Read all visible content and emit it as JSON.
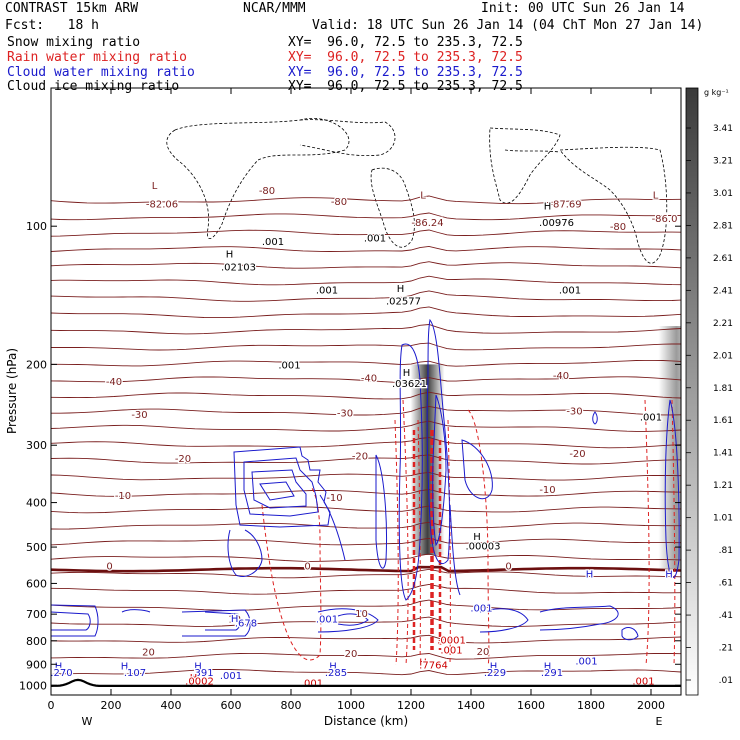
{
  "header": {
    "title": "CONTRAST 15km ARW",
    "forecast": "Fcst:   18 h",
    "center": "NCAR/MMM",
    "init": "Init: 00 UTC Sun 26 Jan 14",
    "valid": "Valid: 18 UTC Sun 26 Jan 14 (04 ChT Mon 27 Jan 14)"
  },
  "fields": [
    {
      "name": "Snow mixing ratio",
      "xy": "XY=  96.0, 72.5 to 235.3, 72.5",
      "color": "#000000"
    },
    {
      "name": "Rain water mixing ratio",
      "xy": "XY=  96.0, 72.5 to 235.3, 72.5",
      "color": "#cc0000"
    },
    {
      "name": "Cloud water mixing ratio",
      "xy": "XY=  96.0, 72.5 to 235.3, 72.5",
      "color": "#0000cc"
    },
    {
      "name": "Cloud ice mixing ratio",
      "xy": "XY=  96.0, 72.5 to 235.3, 72.5",
      "color": "#000000"
    }
  ],
  "colors": {
    "temperature": "#7a1f1f",
    "freezing": "#6b0f0f",
    "rain": "#dd2222",
    "cloud_water": "#1a1acc",
    "cloud_ice": "#000000",
    "snow_shade": "#3a3a3a"
  },
  "chart_data": {
    "type": "cross-section",
    "xlabel": "Distance (km)",
    "ylabel": "Pressure (hPa)",
    "xlim": [
      0,
      2100
    ],
    "ylim": [
      50,
      1050
    ],
    "y_scale": "log",
    "xticks": [
      0,
      200,
      400,
      600,
      800,
      1000,
      1200,
      1400,
      1600,
      1800,
      2000
    ],
    "yticks": [
      100,
      200,
      300,
      400,
      500,
      600,
      700,
      800,
      900,
      1000
    ],
    "x_endpoints": {
      "left": "W",
      "right": "E"
    },
    "colorbar": {
      "unit": "g kg⁻¹",
      "ticks": [
        ".01",
        ".21",
        ".41",
        ".61",
        ".81",
        "1.01",
        "1.21",
        "1.41",
        "1.61",
        "1.81",
        "2.01",
        "2.21",
        "2.41",
        "2.61",
        "2.81",
        "3.01",
        "3.21",
        "3.41"
      ]
    },
    "temperature_contours": [
      {
        "label": "-80",
        "p": 95
      },
      {
        "label": "-40",
        "p": 222
      },
      {
        "label": "-30",
        "p": 262
      },
      {
        "label": "-20",
        "p": 320
      },
      {
        "label": "-10",
        "p": 395
      },
      {
        "label": "0",
        "p": 560
      },
      {
        "label": "10",
        "p": 700
      },
      {
        "label": "20",
        "p": 865
      }
    ],
    "surface_pressure": 1003,
    "snow_columns": [
      {
        "x": 1255,
        "p_top": 200,
        "p_bottom": 520,
        "max": 3.2
      },
      {
        "x": 2075,
        "p_top": 165,
        "p_bottom": 560,
        "max": 2.6
      }
    ],
    "annotations": [
      {
        "text": "L",
        "x": 345,
        "p": 83,
        "color": "#7a1f1f"
      },
      {
        "text": "-82.06",
        "x": 370,
        "p": 91,
        "color": "#7a1f1f"
      },
      {
        "text": "L",
        "x": 1240,
        "p": 87,
        "color": "#7a1f1f"
      },
      {
        "text": "-86.24",
        "x": 1255,
        "p": 100,
        "color": "#7a1f1f"
      },
      {
        "text": "-87.69",
        "x": 1715,
        "p": 91,
        "color": "#7a1f1f"
      },
      {
        "text": "L",
        "x": 2015,
        "p": 87,
        "color": "#7a1f1f"
      },
      {
        "text": "-86.0",
        "x": 2045,
        "p": 98,
        "color": "#7a1f1f"
      },
      {
        "text": "-80",
        "x": 720,
        "p": 85,
        "color": "#7a1f1f"
      },
      {
        "text": "-80",
        "x": 960,
        "p": 90,
        "color": "#7a1f1f"
      },
      {
        "text": "-80",
        "x": 1890,
        "p": 102,
        "color": "#7a1f1f"
      },
      {
        "text": "-40",
        "x": 210,
        "p": 222,
        "color": "#7a1f1f"
      },
      {
        "text": "-40",
        "x": 1060,
        "p": 218,
        "color": "#7a1f1f"
      },
      {
        "text": "-40",
        "x": 1700,
        "p": 215,
        "color": "#7a1f1f"
      },
      {
        "text": "-30",
        "x": 295,
        "p": 262,
        "color": "#7a1f1f"
      },
      {
        "text": "-30",
        "x": 980,
        "p": 260,
        "color": "#7a1f1f"
      },
      {
        "text": "-30",
        "x": 1745,
        "p": 257,
        "color": "#7a1f1f"
      },
      {
        "text": "-20",
        "x": 440,
        "p": 326,
        "color": "#7a1f1f"
      },
      {
        "text": "-20",
        "x": 1030,
        "p": 322,
        "color": "#7a1f1f"
      },
      {
        "text": "-20",
        "x": 1755,
        "p": 318,
        "color": "#7a1f1f"
      },
      {
        "text": "-10",
        "x": 240,
        "p": 393,
        "color": "#7a1f1f"
      },
      {
        "text": "-10",
        "x": 945,
        "p": 397,
        "color": "#7a1f1f"
      },
      {
        "text": "-10",
        "x": 1655,
        "p": 381,
        "color": "#7a1f1f"
      },
      {
        "text": "0",
        "x": 195,
        "p": 560,
        "color": "#7a1f1f"
      },
      {
        "text": "0",
        "x": 855,
        "p": 560,
        "color": "#7a1f1f"
      },
      {
        "text": "0",
        "x": 1525,
        "p": 560,
        "color": "#7a1f1f"
      },
      {
        "text": "10",
        "x": 612,
        "p": 730,
        "color": "#7a1f1f"
      },
      {
        "text": "10",
        "x": 1035,
        "p": 710,
        "color": "#7a1f1f"
      },
      {
        "text": "20",
        "x": 325,
        "p": 862,
        "color": "#7a1f1f"
      },
      {
        "text": "20",
        "x": 1000,
        "p": 868,
        "color": "#7a1f1f"
      },
      {
        "text": "20",
        "x": 1440,
        "p": 860,
        "color": "#7a1f1f"
      },
      {
        "text": "H",
        "x": 595,
        "p": 117,
        "color": "#000000"
      },
      {
        "text": ".02103",
        "x": 625,
        "p": 125,
        "color": "#000000"
      },
      {
        "text": ".001",
        "x": 740,
        "p": 110,
        "color": "#000000"
      },
      {
        "text": ".001",
        "x": 1080,
        "p": 108,
        "color": "#000000"
      },
      {
        "text": ".001",
        "x": 920,
        "p": 140,
        "color": "#000000"
      },
      {
        "text": "H",
        "x": 1165,
        "p": 139,
        "color": "#000000"
      },
      {
        "text": ".02577",
        "x": 1175,
        "p": 148,
        "color": "#000000"
      },
      {
        "text": ".001",
        "x": 795,
        "p": 204,
        "color": "#000000"
      },
      {
        "text": "H",
        "x": 1185,
        "p": 212,
        "color": "#000000"
      },
      {
        "text": ".03621",
        "x": 1195,
        "p": 224,
        "color": "#000000"
      },
      {
        "text": "H",
        "x": 1655,
        "p": 92,
        "color": "#000000"
      },
      {
        "text": ".00976",
        "x": 1685,
        "p": 100,
        "color": "#000000"
      },
      {
        "text": ".001",
        "x": 1730,
        "p": 140,
        "color": "#000000"
      },
      {
        "text": ".001",
        "x": 2000,
        "p": 265,
        "color": "#000000"
      },
      {
        "text": "H",
        "x": 1420,
        "p": 482,
        "color": "#000000"
      },
      {
        "text": ".00003",
        "x": 1440,
        "p": 506,
        "color": "#000000"
      },
      {
        "text": "H",
        "x": 612,
        "p": 728,
        "color": "#1a1acc"
      },
      {
        "text": ".678",
        "x": 650,
        "p": 745,
        "color": "#1a1acc"
      },
      {
        "text": ".001",
        "x": 920,
        "p": 730,
        "color": "#1a1acc"
      },
      {
        "text": "H",
        "x": 1795,
        "p": 582,
        "color": "#1a1acc"
      },
      {
        "text": "H",
        "x": 2060,
        "p": 582,
        "color": "#1a1acc"
      },
      {
        "text": ".001",
        "x": 1435,
        "p": 690,
        "color": "#1a1acc"
      },
      {
        "text": "H",
        "x": 25,
        "p": 925,
        "color": "#1a1acc"
      },
      {
        "text": ".270",
        "x": 35,
        "p": 955,
        "color": "#1a1acc"
      },
      {
        "text": "H",
        "x": 245,
        "p": 925,
        "color": "#1a1acc"
      },
      {
        "text": ".107",
        "x": 280,
        "p": 955,
        "color": "#1a1acc"
      },
      {
        "text": "H",
        "x": 490,
        "p": 925,
        "color": "#1a1acc"
      },
      {
        "text": ".391",
        "x": 505,
        "p": 955,
        "color": "#1a1acc"
      },
      {
        "text": ".001",
        "x": 600,
        "p": 968,
        "color": "#1a1acc"
      },
      {
        "text": "H",
        "x": 940,
        "p": 925,
        "color": "#1a1acc"
      },
      {
        "text": ".285",
        "x": 950,
        "p": 955,
        "color": "#1a1acc"
      },
      {
        "text": "H",
        "x": 1475,
        "p": 925,
        "color": "#1a1acc"
      },
      {
        "text": ".229",
        "x": 1480,
        "p": 955,
        "color": "#1a1acc"
      },
      {
        "text": "H",
        "x": 1655,
        "p": 925,
        "color": "#1a1acc"
      },
      {
        "text": ".291",
        "x": 1670,
        "p": 955,
        "color": "#1a1acc"
      },
      {
        "text": ".001",
        "x": 1785,
        "p": 900,
        "color": "#1a1acc"
      },
      {
        "text": "H",
        "x": 1240,
        "p": 905,
        "color": "#cc0000"
      },
      {
        "text": ".7764",
        "x": 1275,
        "p": 920,
        "color": "#cc0000"
      },
      {
        "text": ".0001",
        "x": 1335,
        "p": 810,
        "color": "#cc0000"
      },
      {
        "text": ".001",
        "x": 1335,
        "p": 853,
        "color": "#cc0000"
      },
      {
        "text": "H",
        "x": 475,
        "p": 980,
        "color": "#cc0000"
      },
      {
        "text": ".0002",
        "x": 495,
        "p": 995,
        "color": "#cc0000"
      },
      {
        "text": ".001",
        "x": 870,
        "p": 1005,
        "color": "#cc0000"
      },
      {
        "text": ".001",
        "x": 1975,
        "p": 995,
        "color": "#cc0000"
      }
    ]
  }
}
